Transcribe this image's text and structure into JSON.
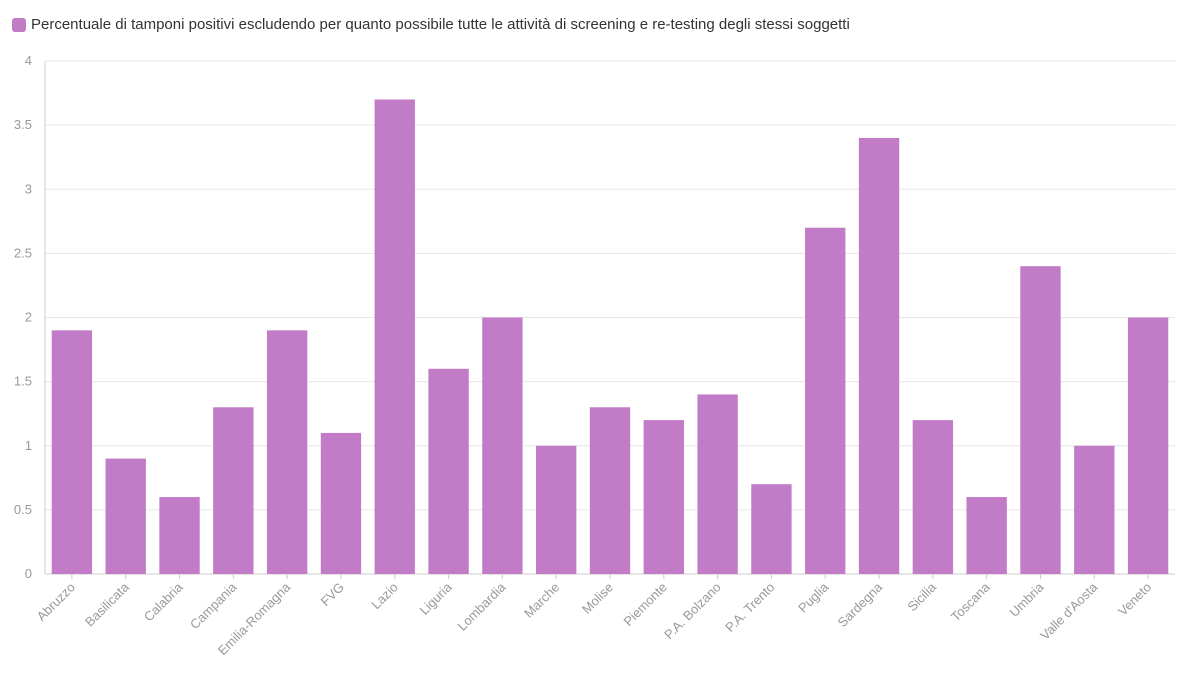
{
  "chart_data": {
    "type": "bar",
    "title": "",
    "xlabel": "",
    "ylabel": "",
    "ylim": [
      0,
      4
    ],
    "yticks": [
      0,
      0.5,
      1,
      1.5,
      2,
      2.5,
      3,
      3.5,
      4
    ],
    "grid": true,
    "legend_position": "top-left",
    "series": [
      {
        "name": "Percentuale di tamponi positivi escludendo per quanto possibile tutte le attività di screening e re-testing degli stessi soggetti",
        "color": "#c27bc7",
        "values": [
          1.9,
          0.9,
          0.6,
          1.3,
          1.9,
          1.1,
          3.7,
          1.6,
          2.0,
          1.0,
          1.3,
          1.2,
          1.4,
          0.7,
          2.7,
          3.4,
          1.2,
          0.6,
          2.4,
          1.0,
          2.0
        ]
      }
    ],
    "categories": [
      "Abruzzo",
      "Basilicata",
      "Calabria",
      "Campania",
      "Emilia-Romagna",
      "FVG",
      "Lazio",
      "Liguria",
      "Lombardia",
      "Marche",
      "Molise",
      "Piemonte",
      "P.A. Bolzano",
      "P.A. Trento",
      "Puglia",
      "Sardegna",
      "Sicilia",
      "Toscana",
      "Umbria",
      "Valle d'Aosta",
      "Veneto"
    ]
  }
}
